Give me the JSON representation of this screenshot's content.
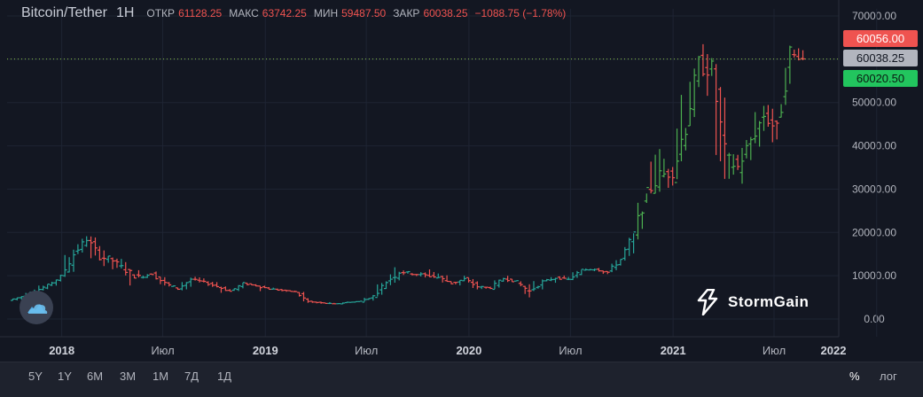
{
  "header": {
    "symbol": "Bitcoin/Tether",
    "timeframe": "1H",
    "open_label": "ОТКР",
    "open": "61128.25",
    "high_label": "МАКС",
    "high": "63742.25",
    "low_label": "МИН",
    "low": "59487.50",
    "close_label": "ЗАКР",
    "close": "60038.25",
    "change": "−1088.75 (−1.78%)"
  },
  "price_tags": {
    "high": "60056.00",
    "current": "60038.25",
    "low": "60020.50"
  },
  "logo": {
    "text": "StormGain"
  },
  "toolbar": {
    "ranges": [
      "5Y",
      "1Y",
      "6M",
      "3M",
      "1M",
      "7Д",
      "1Д"
    ],
    "percent": "%",
    "log": "лог"
  },
  "colors": {
    "up": "#26a69a",
    "up_bright": "#4caf50",
    "down": "#ef5350",
    "background": "#131722",
    "grid": "#1e2433"
  },
  "chart_data": {
    "type": "ohlc",
    "y_ticks": [
      "70000.00",
      "60000.00",
      "50000.00",
      "40000.00",
      "30000.00",
      "20000.00",
      "10000.00",
      "0.00"
    ],
    "ylim": [
      0,
      70000
    ],
    "x_ticks": [
      "2018",
      "Июл",
      "2019",
      "Июл",
      "2020",
      "Июл",
      "2021",
      "Июл",
      "2022"
    ],
    "xlim": [
      "2017-09-25",
      "2021-10-25"
    ],
    "current_price": 60038.25,
    "series": [
      {
        "t": "2017-10",
        "o": 4300,
        "h": 5500,
        "l": 4200,
        "c": 5200
      },
      {
        "t": "2017-11",
        "o": 5200,
        "h": 7000,
        "l": 5000,
        "c": 6400
      },
      {
        "t": "2017-11b",
        "o": 6400,
        "h": 8000,
        "l": 5800,
        "c": 7800
      },
      {
        "t": "2017-11c",
        "o": 7800,
        "h": 10500,
        "l": 7500,
        "c": 9800
      },
      {
        "t": "2017-12",
        "o": 9800,
        "h": 17000,
        "l": 9500,
        "c": 15000
      },
      {
        "t": "2017-12b",
        "o": 15000,
        "h": 19800,
        "l": 14000,
        "c": 18500
      },
      {
        "t": "2017-12c",
        "o": 18500,
        "h": 19500,
        "l": 13000,
        "c": 14500
      },
      {
        "t": "2018-01",
        "o": 14500,
        "h": 17300,
        "l": 11000,
        "c": 13500
      },
      {
        "t": "2018-01b",
        "o": 13500,
        "h": 14500,
        "l": 9500,
        "c": 11200
      },
      {
        "t": "2018-02",
        "o": 11200,
        "h": 11800,
        "l": 6000,
        "c": 9600
      },
      {
        "t": "2018-02b",
        "o": 9600,
        "h": 11500,
        "l": 9000,
        "c": 10500
      },
      {
        "t": "2018-03",
        "o": 10500,
        "h": 11700,
        "l": 7500,
        "c": 8200
      },
      {
        "t": "2018-03b",
        "o": 8200,
        "h": 9200,
        "l": 6600,
        "c": 7000
      },
      {
        "t": "2018-04",
        "o": 7000,
        "h": 9700,
        "l": 6500,
        "c": 9200
      },
      {
        "t": "2018-05",
        "o": 9200,
        "h": 10000,
        "l": 8300,
        "c": 8500
      },
      {
        "t": "2018-05b",
        "o": 8500,
        "h": 8800,
        "l": 7200,
        "c": 7500
      },
      {
        "t": "2018-06",
        "o": 7500,
        "h": 7800,
        "l": 5800,
        "c": 6400
      },
      {
        "t": "2018-07",
        "o": 6400,
        "h": 8400,
        "l": 6200,
        "c": 8200
      },
      {
        "t": "2018-07b",
        "o": 8200,
        "h": 8400,
        "l": 7400,
        "c": 7700
      },
      {
        "t": "2018-08",
        "o": 7700,
        "h": 7800,
        "l": 5900,
        "c": 7000
      },
      {
        "t": "2018-09",
        "o": 7000,
        "h": 7400,
        "l": 6200,
        "c": 6600
      },
      {
        "t": "2018-10",
        "o": 6600,
        "h": 6800,
        "l": 6200,
        "c": 6300
      },
      {
        "t": "2018-11",
        "o": 6300,
        "h": 6500,
        "l": 3500,
        "c": 4000
      },
      {
        "t": "2018-12",
        "o": 4000,
        "h": 4200,
        "l": 3200,
        "c": 3700
      },
      {
        "t": "2019-01",
        "o": 3700,
        "h": 4100,
        "l": 3400,
        "c": 3450
      },
      {
        "t": "2019-02",
        "o": 3450,
        "h": 4200,
        "l": 3400,
        "c": 3850
      },
      {
        "t": "2019-03",
        "o": 3850,
        "h": 4100,
        "l": 3700,
        "c": 4100
      },
      {
        "t": "2019-04",
        "o": 4100,
        "h": 5600,
        "l": 4000,
        "c": 5300
      },
      {
        "t": "2019-05",
        "o": 5300,
        "h": 9000,
        "l": 5200,
        "c": 8600
      },
      {
        "t": "2019-06",
        "o": 8600,
        "h": 13900,
        "l": 7500,
        "c": 11000
      },
      {
        "t": "2019-06b",
        "o": 11000,
        "h": 12000,
        "l": 9500,
        "c": 10500
      },
      {
        "t": "2019-07",
        "o": 10500,
        "h": 11500,
        "l": 9200,
        "c": 10100
      },
      {
        "t": "2019-08",
        "o": 10100,
        "h": 12300,
        "l": 9400,
        "c": 9600
      },
      {
        "t": "2019-09",
        "o": 9600,
        "h": 10900,
        "l": 7800,
        "c": 8300
      },
      {
        "t": "2019-10",
        "o": 8300,
        "h": 10400,
        "l": 7300,
        "c": 9200
      },
      {
        "t": "2019-11",
        "o": 9200,
        "h": 9500,
        "l": 6500,
        "c": 7500
      },
      {
        "t": "2019-12",
        "o": 7500,
        "h": 7800,
        "l": 6400,
        "c": 7200
      },
      {
        "t": "2020-01",
        "o": 7200,
        "h": 9600,
        "l": 6900,
        "c": 9400
      },
      {
        "t": "2020-02",
        "o": 9400,
        "h": 10500,
        "l": 8400,
        "c": 8600
      },
      {
        "t": "2020-03",
        "o": 8600,
        "h": 9200,
        "l": 3800,
        "c": 6400
      },
      {
        "t": "2020-04",
        "o": 6400,
        "h": 9500,
        "l": 6200,
        "c": 8600
      },
      {
        "t": "2020-05",
        "o": 8600,
        "h": 10000,
        "l": 8100,
        "c": 9500
      },
      {
        "t": "2020-06",
        "o": 9500,
        "h": 10400,
        "l": 8900,
        "c": 9100
      },
      {
        "t": "2020-07",
        "o": 9100,
        "h": 11400,
        "l": 8900,
        "c": 11300
      },
      {
        "t": "2020-08",
        "o": 11300,
        "h": 12400,
        "l": 10600,
        "c": 11600
      },
      {
        "t": "2020-09",
        "o": 11600,
        "h": 12000,
        "l": 9900,
        "c": 10800
      },
      {
        "t": "2020-10",
        "o": 10800,
        "h": 14000,
        "l": 10400,
        "c": 13800
      },
      {
        "t": "2020-11",
        "o": 13800,
        "h": 19800,
        "l": 13200,
        "c": 19700
      },
      {
        "t": "2020-12",
        "o": 19700,
        "h": 29000,
        "l": 17600,
        "c": 29000
      },
      {
        "t": "2021-01",
        "o": 29000,
        "h": 42000,
        "l": 28800,
        "c": 33100
      },
      {
        "t": "2021-01b",
        "o": 33100,
        "h": 40000,
        "l": 29000,
        "c": 34000
      },
      {
        "t": "2021-02",
        "o": 34000,
        "h": 58300,
        "l": 32300,
        "c": 45100
      },
      {
        "t": "2021-03",
        "o": 45100,
        "h": 61700,
        "l": 43000,
        "c": 58800
      },
      {
        "t": "2021-04",
        "o": 58800,
        "h": 64800,
        "l": 47000,
        "c": 57700
      },
      {
        "t": "2021-05",
        "o": 57700,
        "h": 59500,
        "l": 30000,
        "c": 37300
      },
      {
        "t": "2021-06",
        "o": 37300,
        "h": 41300,
        "l": 28800,
        "c": 35000
      },
      {
        "t": "2021-07",
        "o": 35000,
        "h": 42400,
        "l": 29300,
        "c": 41400
      },
      {
        "t": "2021-08",
        "o": 41400,
        "h": 50500,
        "l": 37300,
        "c": 47100
      },
      {
        "t": "2021-09",
        "o": 47100,
        "h": 52900,
        "l": 39600,
        "c": 43800
      },
      {
        "t": "2021-10",
        "o": 43800,
        "h": 66900,
        "l": 43200,
        "c": 61300
      },
      {
        "t": "2021-10b",
        "o": 61300,
        "h": 63700,
        "l": 59400,
        "c": 60038
      }
    ]
  }
}
